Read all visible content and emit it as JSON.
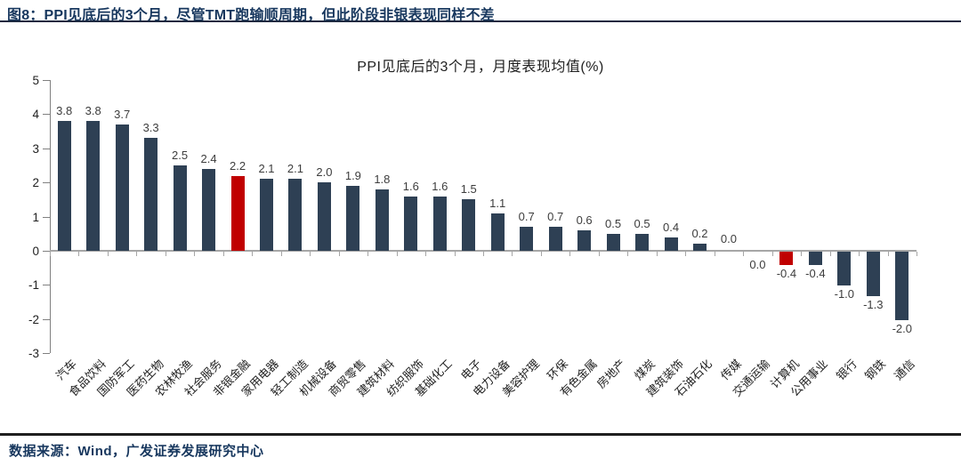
{
  "figure": {
    "caption": "图8：PPI见底后的3个月，尽管TMT跑输顺周期，但此阶段非银表现同样不差"
  },
  "footer": {
    "source": "数据来源：Wind，广发证券发展研究中心"
  },
  "colors": {
    "bar": "#2e4054",
    "highlight": "#c00000",
    "caption_text": "#17375e",
    "source_text": "#17375e",
    "axis_gray": "#808080",
    "zero_line_gray": "#a6a6a6",
    "value_label": "#3d3d3d"
  },
  "chart_data": {
    "type": "bar",
    "title": "PPI见底后的3个月，月度表现均值(%)",
    "ylabel": "",
    "xlabel": "",
    "ylim": [
      -3,
      5
    ],
    "yticks": [
      5,
      4,
      3,
      2,
      1,
      0,
      -1,
      -2,
      -3
    ],
    "grid": false,
    "legend": "none",
    "categories": [
      "汽车",
      "食品饮料",
      "国防军工",
      "医药生物",
      "农林牧渔",
      "社会服务",
      "非银金融",
      "家用电器",
      "轻工制造",
      "机械设备",
      "商贸零售",
      "建筑材料",
      "纺织服饰",
      "基础化工",
      "电子",
      "电力设备",
      "美容护理",
      "环保",
      "有色金属",
      "房地产",
      "煤炭",
      "建筑装饰",
      "石油石化",
      "传媒",
      "交通运输",
      "计算机",
      "公用事业",
      "银行",
      "钢铁",
      "通信"
    ],
    "values": [
      3.8,
      3.8,
      3.7,
      3.3,
      2.5,
      2.4,
      2.2,
      2.1,
      2.1,
      2.0,
      1.9,
      1.8,
      1.6,
      1.6,
      1.5,
      1.1,
      0.7,
      0.7,
      0.6,
      0.5,
      0.5,
      0.4,
      0.2,
      0.0,
      0.0,
      -0.4,
      -0.4,
      -1.0,
      -1.3,
      -2.0
    ],
    "value_labels": [
      "3.8",
      "3.8",
      "3.7",
      "3.3",
      "2.5",
      "2.4",
      "2.2",
      "2.1",
      "2.1",
      "2.0",
      "1.9",
      "1.8",
      "1.6",
      "1.6",
      "1.5",
      "1.1",
      "0.7",
      "0.7",
      "0.6",
      "0.5",
      "0.5",
      "0.4",
      "0.2",
      "0.0",
      "0.0",
      "-0.4",
      "-0.4",
      "-1.0",
      "-1.3",
      "-2.0"
    ],
    "highlight_categories": [
      "非银金融",
      "计算机"
    ],
    "zero_label_below_categories": [
      "交通运输"
    ]
  }
}
